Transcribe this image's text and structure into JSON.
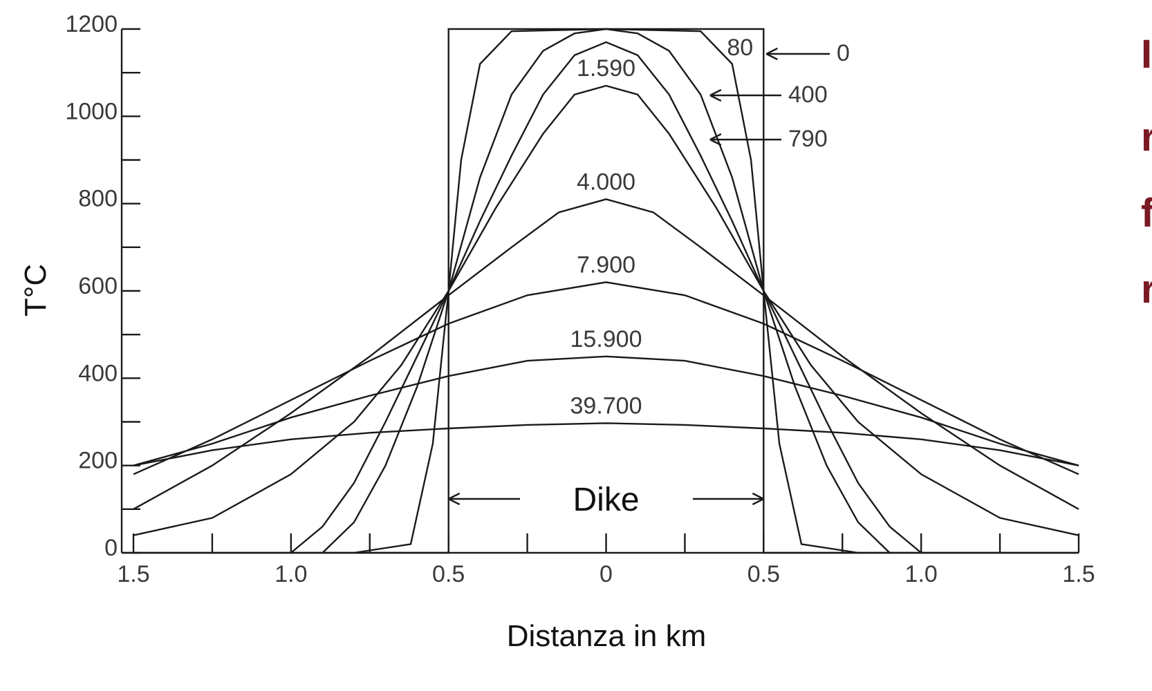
{
  "chart_data": {
    "type": "line",
    "title": "",
    "xlabel": "Distanza in km",
    "ylabel": "T°C",
    "xlim": [
      -1.5,
      1.5
    ],
    "ylim": [
      0,
      1200
    ],
    "y_ticks": [
      "0",
      "200",
      "400",
      "600",
      "800",
      "1000",
      "1200"
    ],
    "x_ticks": [
      "1.5",
      "1.0",
      "0.5",
      "0",
      "0.5",
      "1.0",
      "1.5"
    ],
    "grid": false,
    "dike_label": "Dike",
    "series": [
      {
        "name": "0",
        "label_pos": "arrow-right",
        "x": [
          -1.5,
          -0.5,
          -0.5,
          0.5,
          0.5,
          1.5
        ],
        "y": [
          0,
          0,
          1200,
          1200,
          0,
          0
        ]
      },
      {
        "name": "80",
        "label_pos": "inside-top-right",
        "x": [
          -0.8,
          -0.62,
          -0.55,
          -0.5,
          -0.46,
          -0.4,
          -0.3,
          0,
          0.3,
          0.4,
          0.46,
          0.5,
          0.55,
          0.62,
          0.8
        ],
        "y": [
          0,
          20,
          250,
          600,
          900,
          1120,
          1195,
          1200,
          1195,
          1120,
          900,
          600,
          250,
          20,
          0
        ]
      },
      {
        "name": "400",
        "label_pos": "arrow-right",
        "x": [
          -0.9,
          -0.8,
          -0.7,
          -0.6,
          -0.5,
          -0.4,
          -0.3,
          -0.2,
          -0.1,
          0,
          0.1,
          0.2,
          0.3,
          0.4,
          0.5,
          0.6,
          0.7,
          0.8,
          0.9
        ],
        "y": [
          0,
          70,
          200,
          380,
          600,
          860,
          1050,
          1150,
          1190,
          1200,
          1190,
          1150,
          1050,
          860,
          600,
          380,
          200,
          70,
          0
        ]
      },
      {
        "name": "790",
        "label_pos": "arrow-right",
        "x": [
          -1.0,
          -0.9,
          -0.8,
          -0.7,
          -0.6,
          -0.5,
          -0.4,
          -0.3,
          -0.2,
          -0.1,
          0,
          0.1,
          0.2,
          0.3,
          0.4,
          0.5,
          0.6,
          0.7,
          0.8,
          0.9,
          1.0
        ],
        "y": [
          0,
          60,
          160,
          300,
          450,
          600,
          760,
          910,
          1050,
          1140,
          1170,
          1140,
          1050,
          910,
          760,
          600,
          450,
          300,
          160,
          60,
          0
        ]
      },
      {
        "name": "1.590",
        "label_pos": "above-peak",
        "x": [
          -1.5,
          -1.25,
          -1.0,
          -0.8,
          -0.65,
          -0.5,
          -0.35,
          -0.2,
          -0.1,
          0,
          0.1,
          0.2,
          0.35,
          0.5,
          0.65,
          0.8,
          1.0,
          1.25,
          1.5
        ],
        "y": [
          40,
          80,
          180,
          300,
          430,
          600,
          790,
          960,
          1050,
          1070,
          1050,
          960,
          790,
          600,
          430,
          300,
          180,
          80,
          40
        ]
      },
      {
        "name": "4.000",
        "label_pos": "above-peak",
        "x": [
          -1.5,
          -1.25,
          -1.0,
          -0.75,
          -0.5,
          -0.3,
          -0.15,
          0,
          0.15,
          0.3,
          0.5,
          0.75,
          1.0,
          1.25,
          1.5
        ],
        "y": [
          100,
          200,
          320,
          450,
          590,
          700,
          780,
          810,
          780,
          700,
          590,
          450,
          320,
          200,
          100
        ]
      },
      {
        "name": "7.900",
        "label_pos": "above-peak",
        "x": [
          -1.5,
          -1.25,
          -1.0,
          -0.75,
          -0.5,
          -0.25,
          0,
          0.25,
          0.5,
          0.75,
          1.0,
          1.25,
          1.5
        ],
        "y": [
          180,
          260,
          350,
          440,
          525,
          590,
          620,
          590,
          525,
          440,
          350,
          260,
          180
        ]
      },
      {
        "name": "15.900",
        "label_pos": "above-peak",
        "x": [
          -1.5,
          -1.25,
          -1.0,
          -0.75,
          -0.5,
          -0.25,
          0,
          0.25,
          0.5,
          0.75,
          1.0,
          1.25,
          1.5
        ],
        "y": [
          200,
          250,
          310,
          360,
          405,
          440,
          450,
          440,
          405,
          360,
          310,
          250,
          200
        ]
      },
      {
        "name": "39.700",
        "label_pos": "above-peak",
        "x": [
          -1.5,
          -1.25,
          -1.0,
          -0.75,
          -0.5,
          -0.25,
          0,
          0.25,
          0.5,
          0.75,
          1.0,
          1.25,
          1.5
        ],
        "y": [
          200,
          235,
          260,
          275,
          285,
          293,
          297,
          293,
          285,
          275,
          260,
          235,
          200
        ]
      }
    ]
  },
  "side_text": [
    "I",
    "r",
    "f",
    "r"
  ]
}
